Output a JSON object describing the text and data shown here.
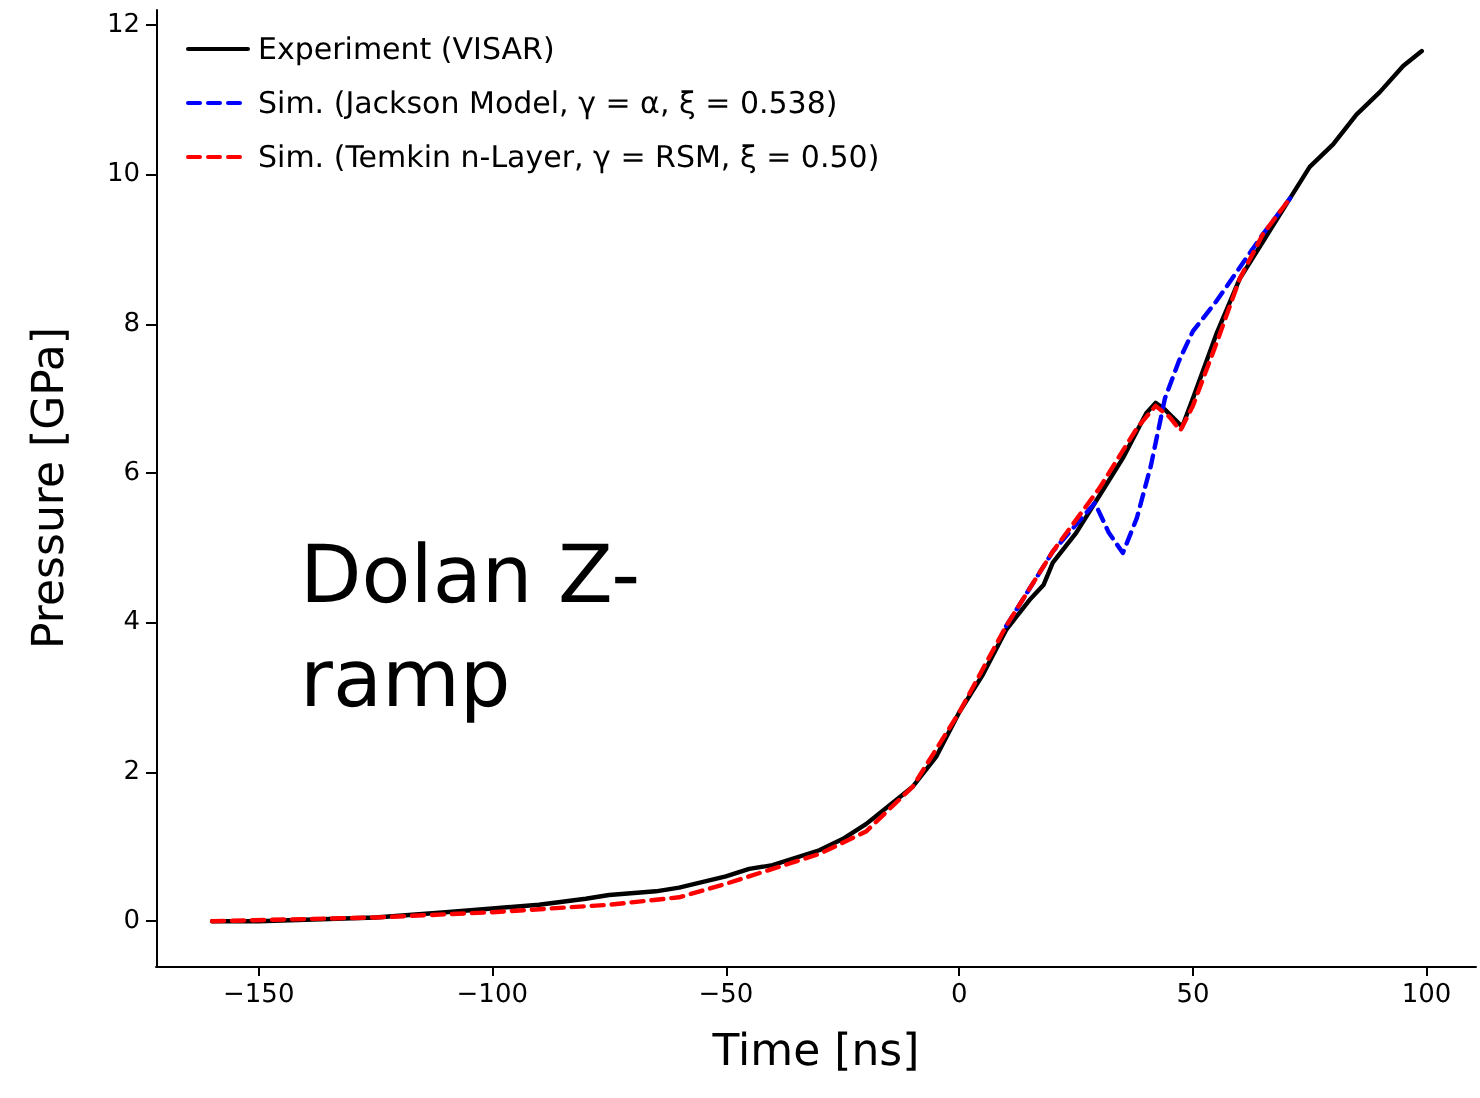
{
  "chart_data": {
    "type": "line",
    "xlabel": "Time [ns]",
    "ylabel": "Pressure [GPa]",
    "xlim": [
      -172,
      110.6
    ],
    "ylim": [
      -0.6,
      12.2
    ],
    "xticks": [
      {
        "value": -150,
        "label": "−150"
      },
      {
        "value": -100,
        "label": "−100"
      },
      {
        "value": -50,
        "label": "−50"
      },
      0,
      50,
      100
    ],
    "yticks": [
      0,
      2,
      4,
      6,
      8,
      10,
      12
    ],
    "grid": false,
    "legend": "top left",
    "marker": "none",
    "annotations": [
      "Dolan Z-ramp"
    ],
    "series": [
      {
        "name": "Experiment (VISAR)",
        "color": "#000000",
        "line_style": "solid",
        "x": [
          -160,
          -150,
          -125,
          -110,
          -100,
          -90,
          -80,
          -75,
          -65,
          -60,
          -50,
          -45,
          -40,
          -30,
          -25,
          -20,
          -15,
          -10,
          -5,
          0,
          5,
          10,
          15,
          18,
          20,
          25,
          30,
          35,
          40,
          42,
          44,
          47.7,
          50,
          55,
          60,
          65,
          70,
          75,
          80,
          85,
          90,
          95,
          99
        ],
        "values": [
          0,
          0,
          0.05,
          0.12,
          0.17,
          0.22,
          0.3,
          0.35,
          0.4,
          0.45,
          0.6,
          0.7,
          0.75,
          0.95,
          1.1,
          1.3,
          1.55,
          1.8,
          2.2,
          2.8,
          3.3,
          3.9,
          4.3,
          4.5,
          4.8,
          5.2,
          5.7,
          6.2,
          6.8,
          6.94,
          6.85,
          6.62,
          7.0,
          7.86,
          8.6,
          9.1,
          9.6,
          10.1,
          10.4,
          10.8,
          11.1,
          11.45,
          11.65
        ]
      },
      {
        "name": "Sim. (Jackson Model, γ = α, ξ = 0.538)",
        "color": "#0000ff",
        "line_style": "dashed",
        "x": [
          10,
          20,
          29,
          32,
          35,
          38,
          41,
          44,
          47,
          50,
          55,
          60,
          65,
          70.8
        ],
        "values": [
          3.95,
          4.95,
          5.6,
          5.2,
          4.93,
          5.4,
          6.1,
          7.0,
          7.5,
          7.9,
          8.3,
          8.75,
          9.2,
          9.68
        ]
      },
      {
        "name": "Sim. (Temkin n-Layer, γ = RSM, ξ = 0.50)",
        "color": "#ff0000",
        "line_style": "dashed",
        "x": [
          -160,
          -125,
          -100,
          -75,
          -60,
          -50,
          -40,
          -30,
          -20,
          -10,
          0,
          10,
          20,
          30,
          38,
          42,
          45,
          47.3,
          50,
          55.4,
          60,
          65,
          70.8
        ],
        "values": [
          0,
          0.05,
          0.12,
          0.22,
          0.32,
          0.5,
          0.7,
          0.9,
          1.2,
          1.8,
          2.8,
          3.95,
          4.95,
          5.8,
          6.6,
          6.9,
          6.75,
          6.57,
          6.9,
          7.8,
          8.6,
          9.2,
          9.68
        ]
      }
    ]
  }
}
